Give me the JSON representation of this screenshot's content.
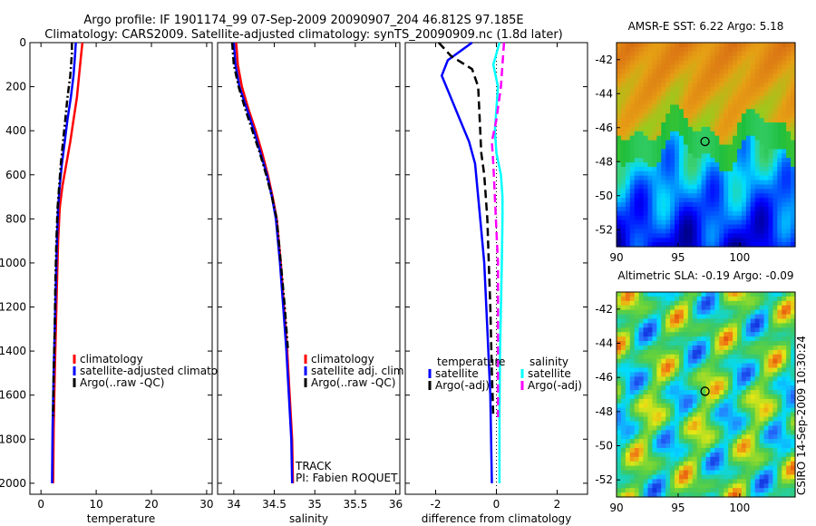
{
  "figure": {
    "title_line1": "Argo profile: IF 1901174_99 07-Sep-2009 20090907_204 46.812S 97.185E",
    "title_line2": "Climatology: CARS2009. Satellite-adjusted climatology: synTS_20090909.nc (1.8d later)",
    "side_credit": "CSIRO 14-Sep-2009 10:30:24"
  },
  "colors": {
    "climatology": "#ff0000",
    "satellite_adjusted": "#0000ff",
    "argo": "#000000",
    "salinity_satellite": "#00ffff",
    "salinity_argo": "#ff00ff"
  },
  "chart_data": [
    {
      "type": "line",
      "panel": "temperature",
      "xlabel": "temperature",
      "ylabel": "",
      "xlim": [
        -2,
        31
      ],
      "ylim": [
        2050,
        0
      ],
      "xticks": [
        0,
        10,
        20,
        30
      ],
      "yticks": [
        0,
        200,
        400,
        600,
        800,
        1000,
        1200,
        1400,
        1600,
        1800,
        2000
      ],
      "series": [
        {
          "name": "climatology",
          "x": [
            7.5,
            7.3,
            6.9,
            6.5,
            5.9,
            5.3,
            4.6,
            3.9,
            3.4,
            3.1,
            2.9,
            2.7,
            2.5,
            2.3,
            2.2
          ],
          "y": [
            0,
            50,
            150,
            250,
            350,
            450,
            550,
            650,
            750,
            900,
            1100,
            1300,
            1500,
            1750,
            2000
          ]
        },
        {
          "name": "satellite-adjusted climatology",
          "x": [
            6.3,
            6.2,
            5.9,
            5.4,
            4.8,
            4.3,
            3.8,
            3.4,
            3.1,
            2.9,
            2.7,
            2.5,
            2.3,
            2.1,
            2.0
          ],
          "y": [
            0,
            50,
            150,
            250,
            350,
            450,
            550,
            650,
            750,
            900,
            1100,
            1300,
            1500,
            1750,
            2000
          ]
        },
        {
          "name": "Argo(..raw -QC)",
          "x": [
            5.6,
            5.6,
            5.3,
            4.8,
            4.4,
            4.0,
            3.6,
            3.3,
            3.0,
            2.8,
            2.6,
            2.5,
            2.3,
            2.2
          ],
          "y": [
            0,
            50,
            150,
            250,
            350,
            450,
            550,
            650,
            750,
            900,
            1100,
            1300,
            1500,
            1700
          ]
        }
      ],
      "legend": [
        "climatology",
        "satellite-adjusted climatology",
        "Argo(..raw -QC)"
      ]
    },
    {
      "type": "line",
      "panel": "salinity",
      "xlabel": "salinity",
      "ylabel": "",
      "xlim": [
        33.8,
        36.05
      ],
      "ylim": [
        2050,
        0
      ],
      "xticks": [
        34,
        34.5,
        35,
        35.5,
        36
      ],
      "series": [
        {
          "name": "climatology",
          "x": [
            34.03,
            34.05,
            34.1,
            34.18,
            34.27,
            34.35,
            34.42,
            34.48,
            34.53,
            34.58,
            34.62,
            34.66,
            34.69,
            34.72,
            34.73
          ],
          "y": [
            0,
            100,
            200,
            300,
            400,
            500,
            600,
            700,
            800,
            1000,
            1200,
            1400,
            1600,
            1800,
            2000
          ]
        },
        {
          "name": "satellite adj. clim.",
          "x": [
            34.0,
            34.02,
            34.07,
            34.16,
            34.25,
            34.33,
            34.41,
            34.47,
            34.52,
            34.57,
            34.61,
            34.65,
            34.68,
            34.71,
            34.72
          ],
          "y": [
            0,
            100,
            200,
            300,
            400,
            500,
            600,
            700,
            800,
            1000,
            1200,
            1400,
            1600,
            1800,
            2000
          ]
        },
        {
          "name": "Argo(..raw -QC)",
          "x": [
            33.98,
            34.0,
            34.06,
            34.14,
            34.23,
            34.32,
            34.4,
            34.47,
            34.53,
            34.58,
            34.63,
            34.67
          ],
          "y": [
            0,
            100,
            200,
            300,
            400,
            500,
            600,
            700,
            800,
            1000,
            1200,
            1400
          ]
        }
      ],
      "legend": [
        "climatology",
        "satellite adj. clim.",
        "Argo(..raw -QC)"
      ],
      "annotations": [
        "TRACK",
        "PI: Fabien ROQUET"
      ]
    },
    {
      "type": "line",
      "panel": "difference",
      "xlabel": "difference from climatology",
      "ylabel": "",
      "xlim": [
        -3,
        3
      ],
      "ylim": [
        2050,
        0
      ],
      "xticks": [
        -2,
        0,
        2
      ],
      "series": [
        {
          "name": "temperature satellite",
          "x": [
            -0.8,
            -1.6,
            -1.8,
            -1.5,
            -1.2,
            -0.9,
            -0.7,
            -0.6,
            -0.5,
            -0.4,
            -0.3,
            -0.2,
            -0.15
          ],
          "y": [
            0,
            80,
            150,
            250,
            350,
            450,
            550,
            700,
            850,
            1000,
            1300,
            1600,
            2000
          ]
        },
        {
          "name": "temperature Argo(-adj)",
          "x": [
            -1.9,
            -1.5,
            -0.8,
            -0.6,
            -0.55,
            -0.5,
            -0.4,
            -0.3,
            -0.25,
            -0.2,
            -0.15,
            -0.1
          ],
          "y": [
            0,
            60,
            120,
            200,
            350,
            500,
            600,
            800,
            1000,
            1200,
            1500,
            1700
          ]
        },
        {
          "name": "salinity satellite",
          "x": [
            0.1,
            -0.1,
            0.05,
            0.0,
            -0.05,
            0.0,
            0.15,
            0.2,
            0.2,
            0.18,
            0.15,
            0.12,
            0.1,
            0.1
          ],
          "y": [
            0,
            100,
            200,
            300,
            400,
            500,
            600,
            700,
            800,
            1000,
            1200,
            1400,
            1700,
            2000
          ]
        },
        {
          "name": "salinity Argo(-adj)",
          "x": [
            0.25,
            0.2,
            0.15,
            0.0,
            -0.15,
            -0.1,
            -0.05,
            0.0,
            0.05,
            0.05,
            0.05,
            0.05
          ],
          "y": [
            0,
            100,
            200,
            350,
            450,
            550,
            700,
            850,
            1000,
            1200,
            1400,
            1700
          ]
        }
      ],
      "legend_headers": [
        "temperature",
        "salinity"
      ],
      "legend": [
        "satellite",
        "Argo(-adj)",
        "satellite",
        "Argo(-adj)"
      ]
    },
    {
      "type": "heatmap",
      "panel": "sst_map",
      "title": "AMSR-E SST: 6.22 Argo: 5.18",
      "xlim": [
        90,
        104.5
      ],
      "ylim": [
        -53,
        -41
      ],
      "xticks": [
        90,
        95,
        100
      ],
      "yticks": [
        -42,
        -44,
        -46,
        -48,
        -50,
        -52
      ],
      "marker": {
        "lon": 97.185,
        "lat": -46.812
      }
    },
    {
      "type": "heatmap",
      "panel": "sla_map",
      "title": "Altimetric SLA: -0.19 Argo: -0.09",
      "xlim": [
        90,
        104.5
      ],
      "ylim": [
        -53,
        -41
      ],
      "xticks": [
        90,
        95,
        100
      ],
      "yticks": [
        -42,
        -44,
        -46,
        -48,
        -50,
        -52
      ],
      "marker": {
        "lon": 97.185,
        "lat": -46.812
      }
    }
  ]
}
